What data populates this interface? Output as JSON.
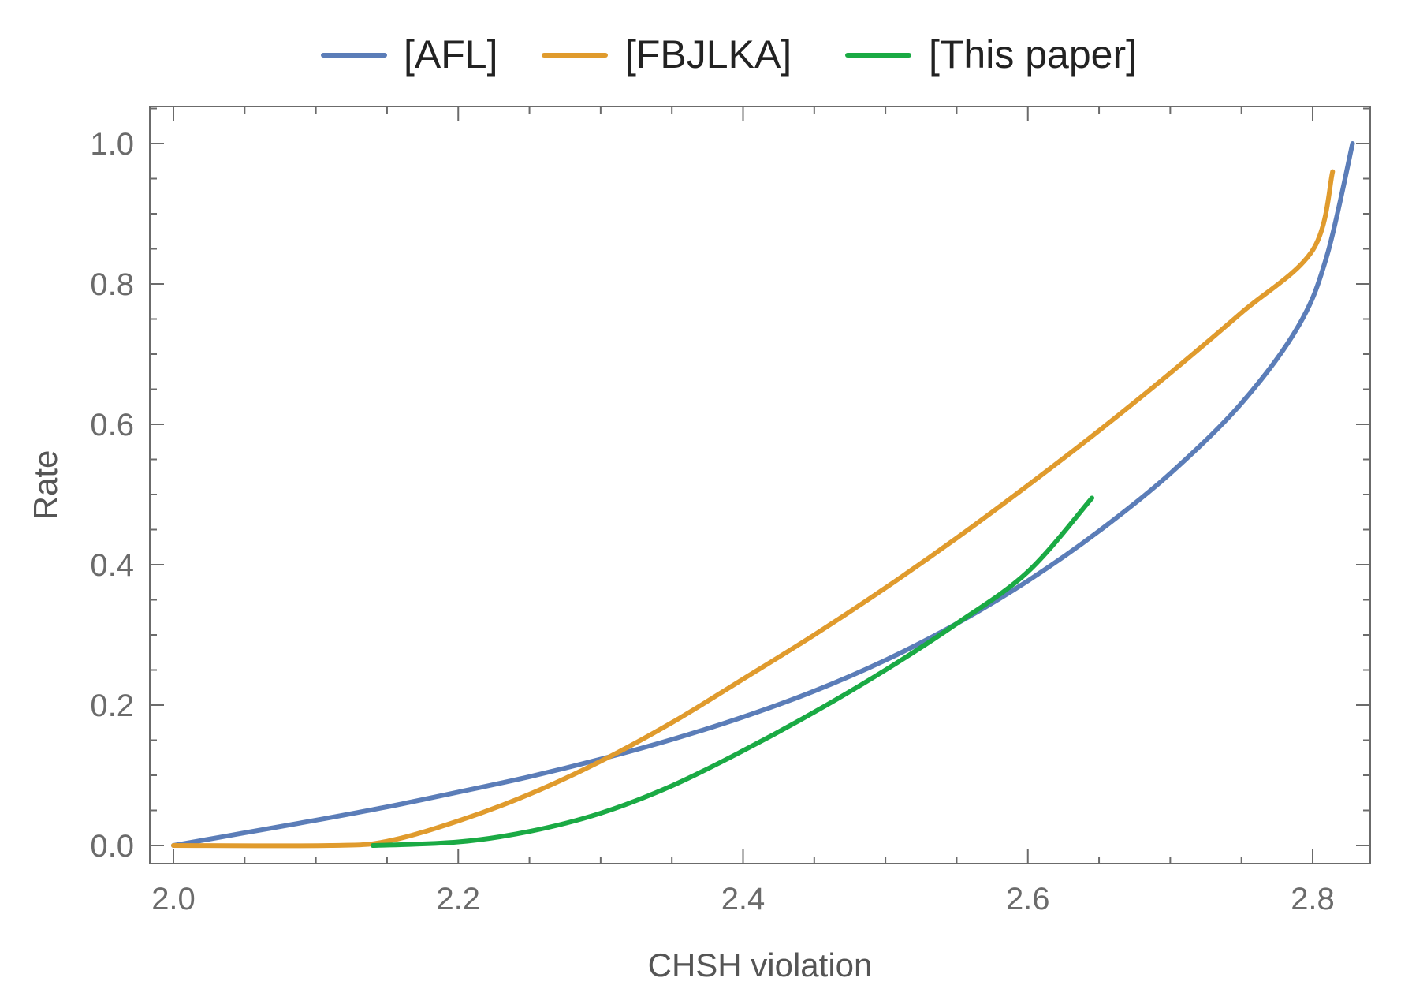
{
  "chart_data": {
    "type": "line",
    "xlabel": "CHSH violation",
    "ylabel": "Rate",
    "xlim": [
      2.0,
      2.83
    ],
    "ylim": [
      0.0,
      1.05
    ],
    "x_ticks": [
      "2.0",
      "2.2",
      "2.4",
      "2.6",
      "2.8"
    ],
    "y_ticks": [
      "0.0",
      "0.2",
      "0.4",
      "0.6",
      "0.8",
      "1.0"
    ],
    "legend_position": "top-center",
    "grid": false,
    "series": [
      {
        "name": "[AFL]",
        "color": "#5b7db8",
        "points": [
          [
            2.0,
            0.0
          ],
          [
            2.05,
            0.018
          ],
          [
            2.1,
            0.036
          ],
          [
            2.15,
            0.055
          ],
          [
            2.2,
            0.076
          ],
          [
            2.25,
            0.098
          ],
          [
            2.3,
            0.123
          ],
          [
            2.35,
            0.151
          ],
          [
            2.4,
            0.183
          ],
          [
            2.45,
            0.22
          ],
          [
            2.5,
            0.264
          ],
          [
            2.55,
            0.316
          ],
          [
            2.6,
            0.377
          ],
          [
            2.65,
            0.448
          ],
          [
            2.7,
            0.53
          ],
          [
            2.75,
            0.63
          ],
          [
            2.79,
            0.74
          ],
          [
            2.81,
            0.84
          ],
          [
            2.828,
            1.0
          ]
        ]
      },
      {
        "name": "[FBJLKA]",
        "color": "#e09b2d",
        "points": [
          [
            2.0,
            0.0
          ],
          [
            2.11,
            0.0
          ],
          [
            2.15,
            0.006
          ],
          [
            2.2,
            0.035
          ],
          [
            2.25,
            0.073
          ],
          [
            2.3,
            0.12
          ],
          [
            2.35,
            0.175
          ],
          [
            2.4,
            0.237
          ],
          [
            2.45,
            0.3
          ],
          [
            2.5,
            0.367
          ],
          [
            2.55,
            0.438
          ],
          [
            2.6,
            0.513
          ],
          [
            2.65,
            0.591
          ],
          [
            2.7,
            0.673
          ],
          [
            2.75,
            0.759
          ],
          [
            2.8,
            0.848
          ],
          [
            2.814,
            0.96
          ]
        ]
      },
      {
        "name": "[This paper]",
        "color": "#1aaa44",
        "points": [
          [
            2.14,
            0.0
          ],
          [
            2.2,
            0.005
          ],
          [
            2.25,
            0.02
          ],
          [
            2.3,
            0.046
          ],
          [
            2.35,
            0.085
          ],
          [
            2.4,
            0.135
          ],
          [
            2.45,
            0.19
          ],
          [
            2.5,
            0.25
          ],
          [
            2.55,
            0.316
          ],
          [
            2.6,
            0.39
          ],
          [
            2.645,
            0.495
          ]
        ]
      }
    ]
  }
}
